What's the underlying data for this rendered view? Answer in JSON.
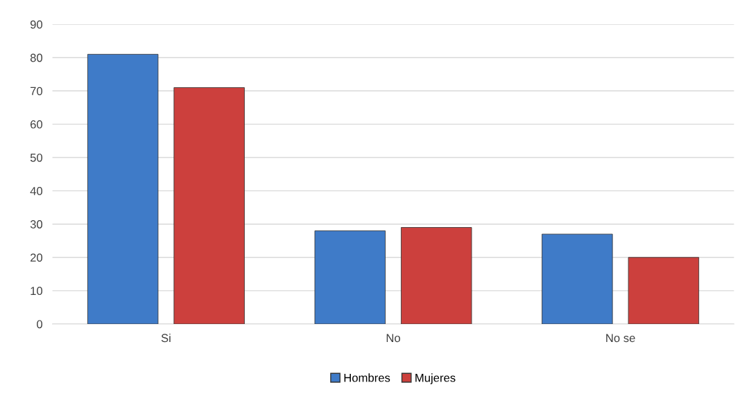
{
  "chart_data": {
    "type": "bar",
    "categories": [
      "Si",
      "No",
      "No se"
    ],
    "series": [
      {
        "name": "Hombres",
        "color": "#3f7bc8",
        "values": [
          81,
          28,
          27
        ]
      },
      {
        "name": "Mujeres",
        "color": "#cc403d",
        "values": [
          71,
          29,
          20
        ]
      }
    ],
    "ylim": [
      0,
      90
    ],
    "yticks": [
      0,
      10,
      20,
      30,
      40,
      50,
      60,
      70,
      80,
      90
    ],
    "grid": "y",
    "legend": "bottom"
  }
}
